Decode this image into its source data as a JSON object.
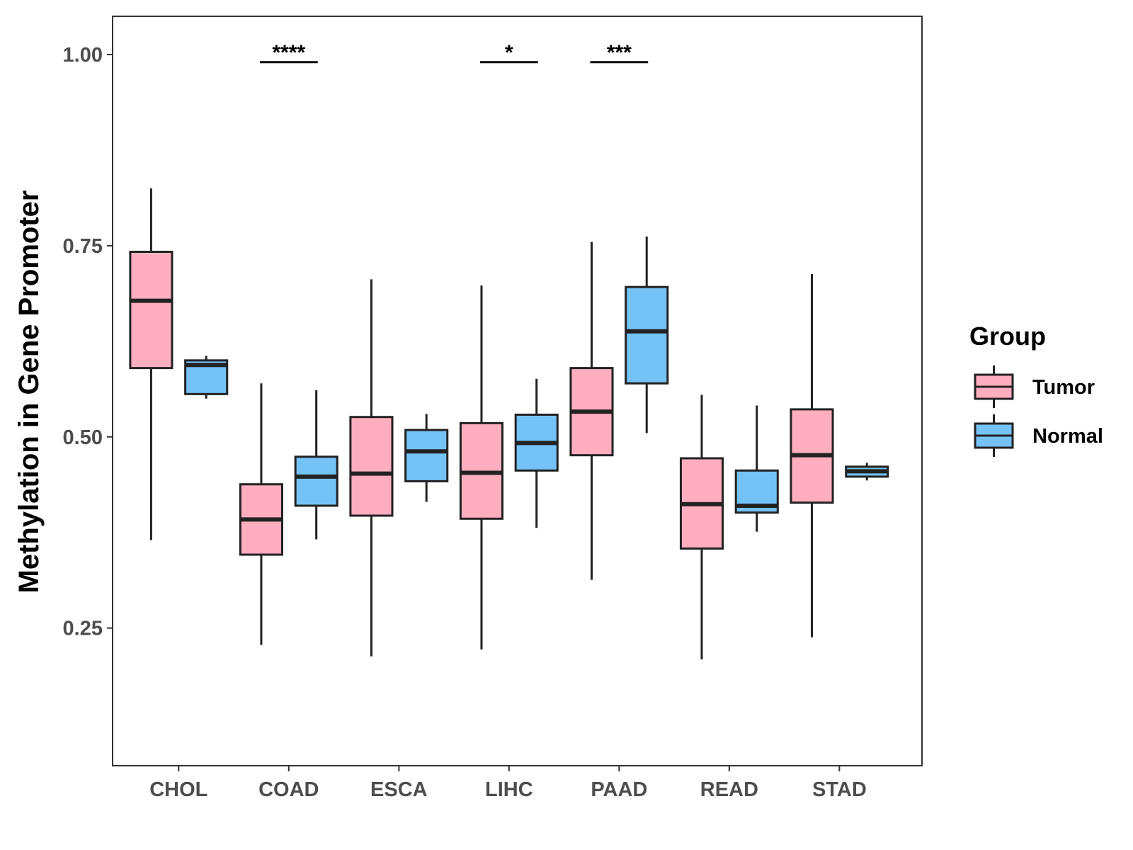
{
  "chart_data": {
    "type": "boxplot",
    "title": "",
    "xlabel": "",
    "ylabel": "Methylation in Gene Promoter",
    "ylim": [
      0.07,
      1.05
    ],
    "yticks": [
      0.25,
      0.5,
      0.75,
      1.0
    ],
    "ytick_labels": [
      "0.25",
      "0.50",
      "0.75",
      "1.00"
    ],
    "grid": false,
    "legend": {
      "title": "Group",
      "position": "right",
      "entries": [
        {
          "name": "Tumor",
          "color": "#ffaec0"
        },
        {
          "name": "Normal",
          "color": "#75c2f6"
        }
      ]
    },
    "categories": [
      "CHOL",
      "COAD",
      "ESCA",
      "LIHC",
      "PAAD",
      "READ",
      "STAD"
    ],
    "series": [
      {
        "name": "Tumor",
        "color": "#ffaec0",
        "boxes": [
          {
            "min": 0.365,
            "q1": 0.59,
            "median": 0.678,
            "q3": 0.742,
            "max": 0.825
          },
          {
            "min": 0.228,
            "q1": 0.346,
            "median": 0.392,
            "q3": 0.438,
            "max": 0.57
          },
          {
            "min": 0.213,
            "q1": 0.397,
            "median": 0.452,
            "q3": 0.526,
            "max": 0.706
          },
          {
            "min": 0.222,
            "q1": 0.393,
            "median": 0.453,
            "q3": 0.518,
            "max": 0.698
          },
          {
            "min": 0.313,
            "q1": 0.476,
            "median": 0.533,
            "q3": 0.59,
            "max": 0.755
          },
          {
            "min": 0.209,
            "q1": 0.354,
            "median": 0.412,
            "q3": 0.472,
            "max": 0.555
          },
          {
            "min": 0.238,
            "q1": 0.414,
            "median": 0.476,
            "q3": 0.536,
            "max": 0.713
          }
        ]
      },
      {
        "name": "Normal",
        "color": "#75c2f6",
        "boxes": [
          {
            "min": 0.55,
            "q1": 0.556,
            "median": 0.594,
            "q3": 0.6,
            "max": 0.606
          },
          {
            "min": 0.366,
            "q1": 0.41,
            "median": 0.448,
            "q3": 0.474,
            "max": 0.561
          },
          {
            "min": 0.415,
            "q1": 0.442,
            "median": 0.481,
            "q3": 0.509,
            "max": 0.53
          },
          {
            "min": 0.381,
            "q1": 0.456,
            "median": 0.492,
            "q3": 0.529,
            "max": 0.576
          },
          {
            "min": 0.505,
            "q1": 0.57,
            "median": 0.638,
            "q3": 0.696,
            "max": 0.762
          },
          {
            "min": 0.376,
            "q1": 0.401,
            "median": 0.41,
            "q3": 0.456,
            "max": 0.541
          },
          {
            "min": 0.443,
            "q1": 0.448,
            "median": 0.455,
            "q3": 0.461,
            "max": 0.466
          }
        ]
      }
    ],
    "annotations": [
      {
        "category": "COAD",
        "label": "****",
        "y": 0.99
      },
      {
        "category": "LIHC",
        "label": "*",
        "y": 0.99
      },
      {
        "category": "PAAD",
        "label": "***",
        "y": 0.99
      }
    ]
  }
}
